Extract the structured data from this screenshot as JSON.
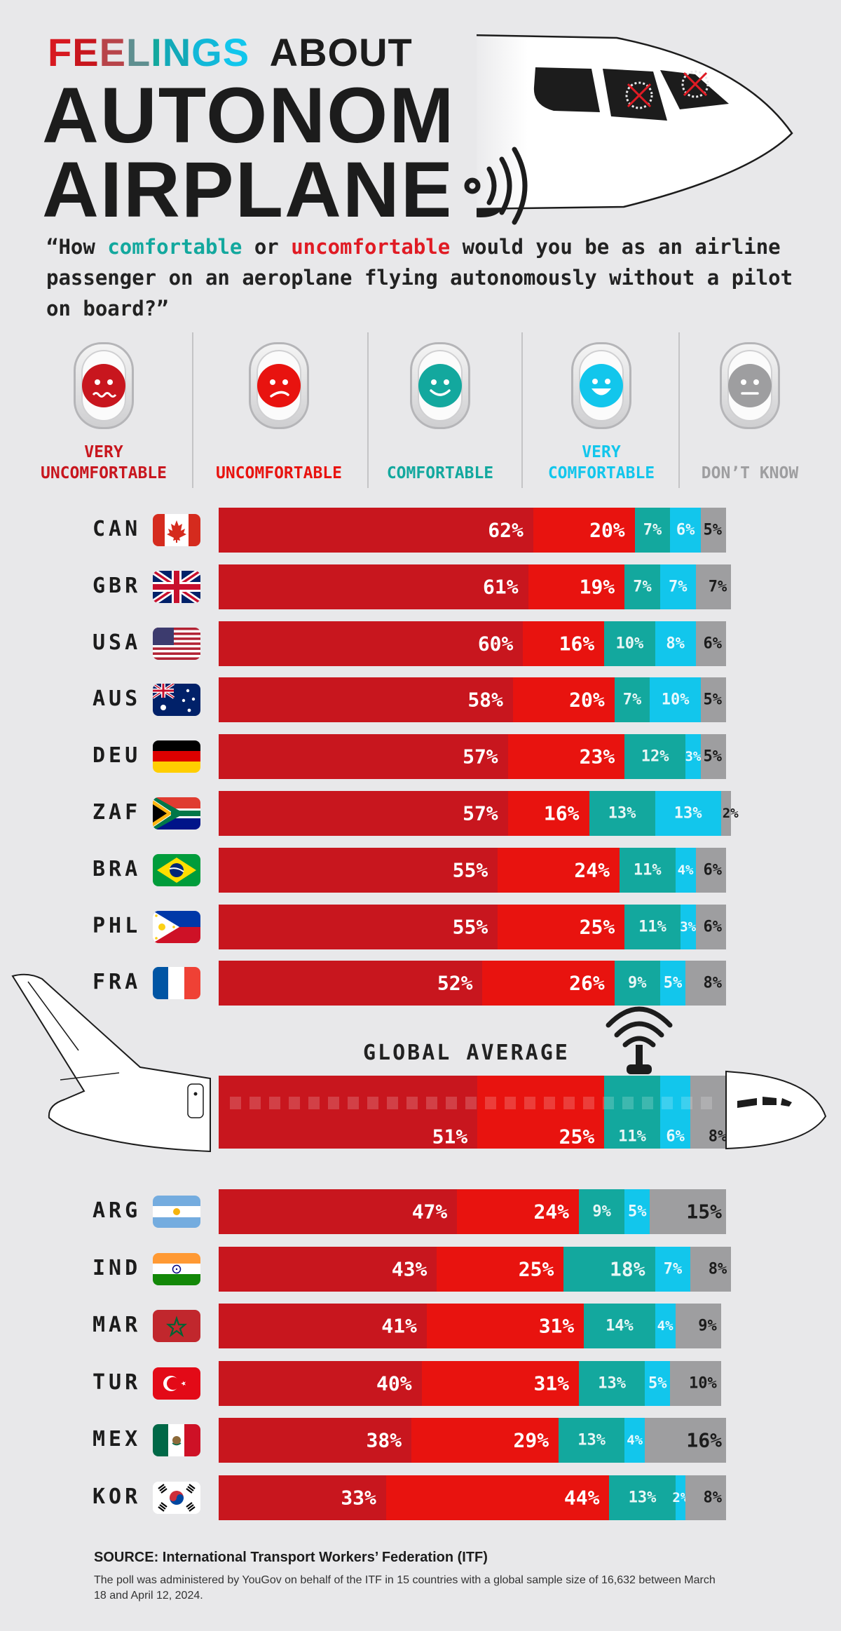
{
  "header": {
    "line1_part1": "FEELINGS",
    "line1_part2": "ABOUT",
    "title_line1": "AUTONOMOUS",
    "title_line2": "AIRPLANES"
  },
  "question": {
    "open": "“How ",
    "comfortable": "comfortable",
    "or": " or ",
    "uncomfortable": "uncomfortable",
    "rest": " would you be as an airline passenger on an aeroplane flying autonomously without a pilot on board?”"
  },
  "categories": [
    {
      "line1": "VERY",
      "line2": "UNCOMFORTABLE",
      "color": "#c8161e",
      "face": "worried"
    },
    {
      "line1": "",
      "line2": "UNCOMFORTABLE",
      "color": "#e8130f",
      "face": "frown"
    },
    {
      "line1": "",
      "line2": "COMFORTABLE",
      "color": "#13a89e",
      "face": "smile"
    },
    {
      "line1": "VERY",
      "line2": "COMFORTABLE",
      "color": "#12c6ec",
      "face": "grin"
    },
    {
      "line1": "",
      "line2": "DON’T KNOW",
      "color": "#9e9ea0",
      "face": "neutral"
    }
  ],
  "colors": {
    "very_uncomfortable": "#c8161e",
    "uncomfortable": "#e8130f",
    "comfortable": "#13a89e",
    "very_comfortable": "#12c6ec",
    "dont_know": "#9e9ea0"
  },
  "chart_data": {
    "type": "bar",
    "orientation": "horizontal-stacked",
    "series_names": [
      "VERY UNCOMFORTABLE",
      "UNCOMFORTABLE",
      "COMFORTABLE",
      "VERY COMFORTABLE",
      "DON’T KNOW"
    ],
    "rows_top": [
      {
        "country": "CAN",
        "flag": "canada",
        "values": [
          62,
          20,
          7,
          6,
          5
        ]
      },
      {
        "country": "GBR",
        "flag": "uk",
        "values": [
          61,
          19,
          7,
          7,
          7
        ]
      },
      {
        "country": "USA",
        "flag": "usa",
        "values": [
          60,
          16,
          10,
          8,
          6
        ]
      },
      {
        "country": "AUS",
        "flag": "australia",
        "values": [
          58,
          20,
          7,
          10,
          5
        ]
      },
      {
        "country": "DEU",
        "flag": "germany",
        "values": [
          57,
          23,
          12,
          3,
          5
        ]
      },
      {
        "country": "ZAF",
        "flag": "south-africa",
        "values": [
          57,
          16,
          13,
          13,
          2
        ]
      },
      {
        "country": "BRA",
        "flag": "brazil",
        "values": [
          55,
          24,
          11,
          4,
          6
        ]
      },
      {
        "country": "PHL",
        "flag": "philippines",
        "values": [
          55,
          25,
          11,
          3,
          6
        ]
      },
      {
        "country": "FRA",
        "flag": "france",
        "values": [
          52,
          26,
          9,
          5,
          8
        ]
      }
    ],
    "global": {
      "label": "GLOBAL AVERAGE",
      "values": [
        51,
        25,
        11,
        6,
        8
      ]
    },
    "rows_bottom": [
      {
        "country": "ARG",
        "flag": "argentina",
        "values": [
          47,
          24,
          9,
          5,
          15
        ]
      },
      {
        "country": "IND",
        "flag": "india",
        "values": [
          43,
          25,
          18,
          7,
          8
        ]
      },
      {
        "country": "MAR",
        "flag": "morocco",
        "values": [
          41,
          31,
          14,
          4,
          9
        ]
      },
      {
        "country": "TUR",
        "flag": "turkey",
        "values": [
          40,
          31,
          13,
          5,
          10
        ]
      },
      {
        "country": "MEX",
        "flag": "mexico",
        "values": [
          38,
          29,
          13,
          4,
          16
        ]
      },
      {
        "country": "KOR",
        "flag": "south-korea",
        "values": [
          33,
          44,
          13,
          2,
          8
        ]
      }
    ]
  },
  "footer": {
    "source": "SOURCE: International Transport Workers’ Federation (ITF)",
    "note": "The poll was administered by YouGov on behalf of the ITF in 15 countries with a global sample size of 16,632 between March 18 and April 12, 2024."
  }
}
